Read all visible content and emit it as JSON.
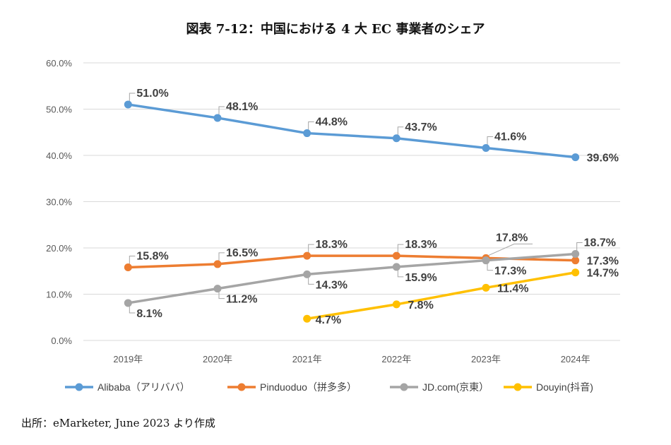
{
  "chart_data": {
    "type": "line",
    "title": "図表 7-12：中国における 4 大 EC 事業者のシェア",
    "source": "出所：eMarketer, June 2023 より作成",
    "categories": [
      "2019年",
      "2020年",
      "2021年",
      "2022年",
      "2023年",
      "2024年"
    ],
    "ylim": [
      0,
      60
    ],
    "yticks": [
      "0.0%",
      "10.0%",
      "20.0%",
      "30.0%",
      "40.0%",
      "50.0%",
      "60.0%"
    ],
    "grid": true,
    "legend_position": "bottom",
    "series": [
      {
        "name": "Alibaba（アリババ）",
        "color": "#5b9bd5",
        "values": [
          51.0,
          48.1,
          44.8,
          43.7,
          41.6,
          39.6
        ],
        "labels": [
          "51.0%",
          "48.1%",
          "44.8%",
          "43.7%",
          "41.6%",
          "39.6%"
        ]
      },
      {
        "name": "Pinduoduo（拼多多）",
        "color": "#ed7d31",
        "values": [
          15.8,
          16.5,
          18.3,
          18.3,
          17.8,
          17.3
        ],
        "labels": [
          "15.8%",
          "16.5%",
          "18.3%",
          "18.3%",
          "17.8%",
          "17.3%"
        ]
      },
      {
        "name": "JD.com(京東）",
        "color": "#a5a5a5",
        "values": [
          8.1,
          11.2,
          14.3,
          15.9,
          17.3,
          18.7
        ],
        "labels": [
          "8.1%",
          "11.2%",
          "14.3%",
          "15.9%",
          "17.3%",
          "18.7%"
        ]
      },
      {
        "name": "Douyin(抖音)",
        "color": "#ffc000",
        "values": [
          null,
          null,
          4.7,
          7.8,
          11.4,
          14.7
        ],
        "labels": [
          "",
          "",
          "4.7%",
          "7.8%",
          "11.4%",
          "14.7%"
        ]
      }
    ]
  }
}
